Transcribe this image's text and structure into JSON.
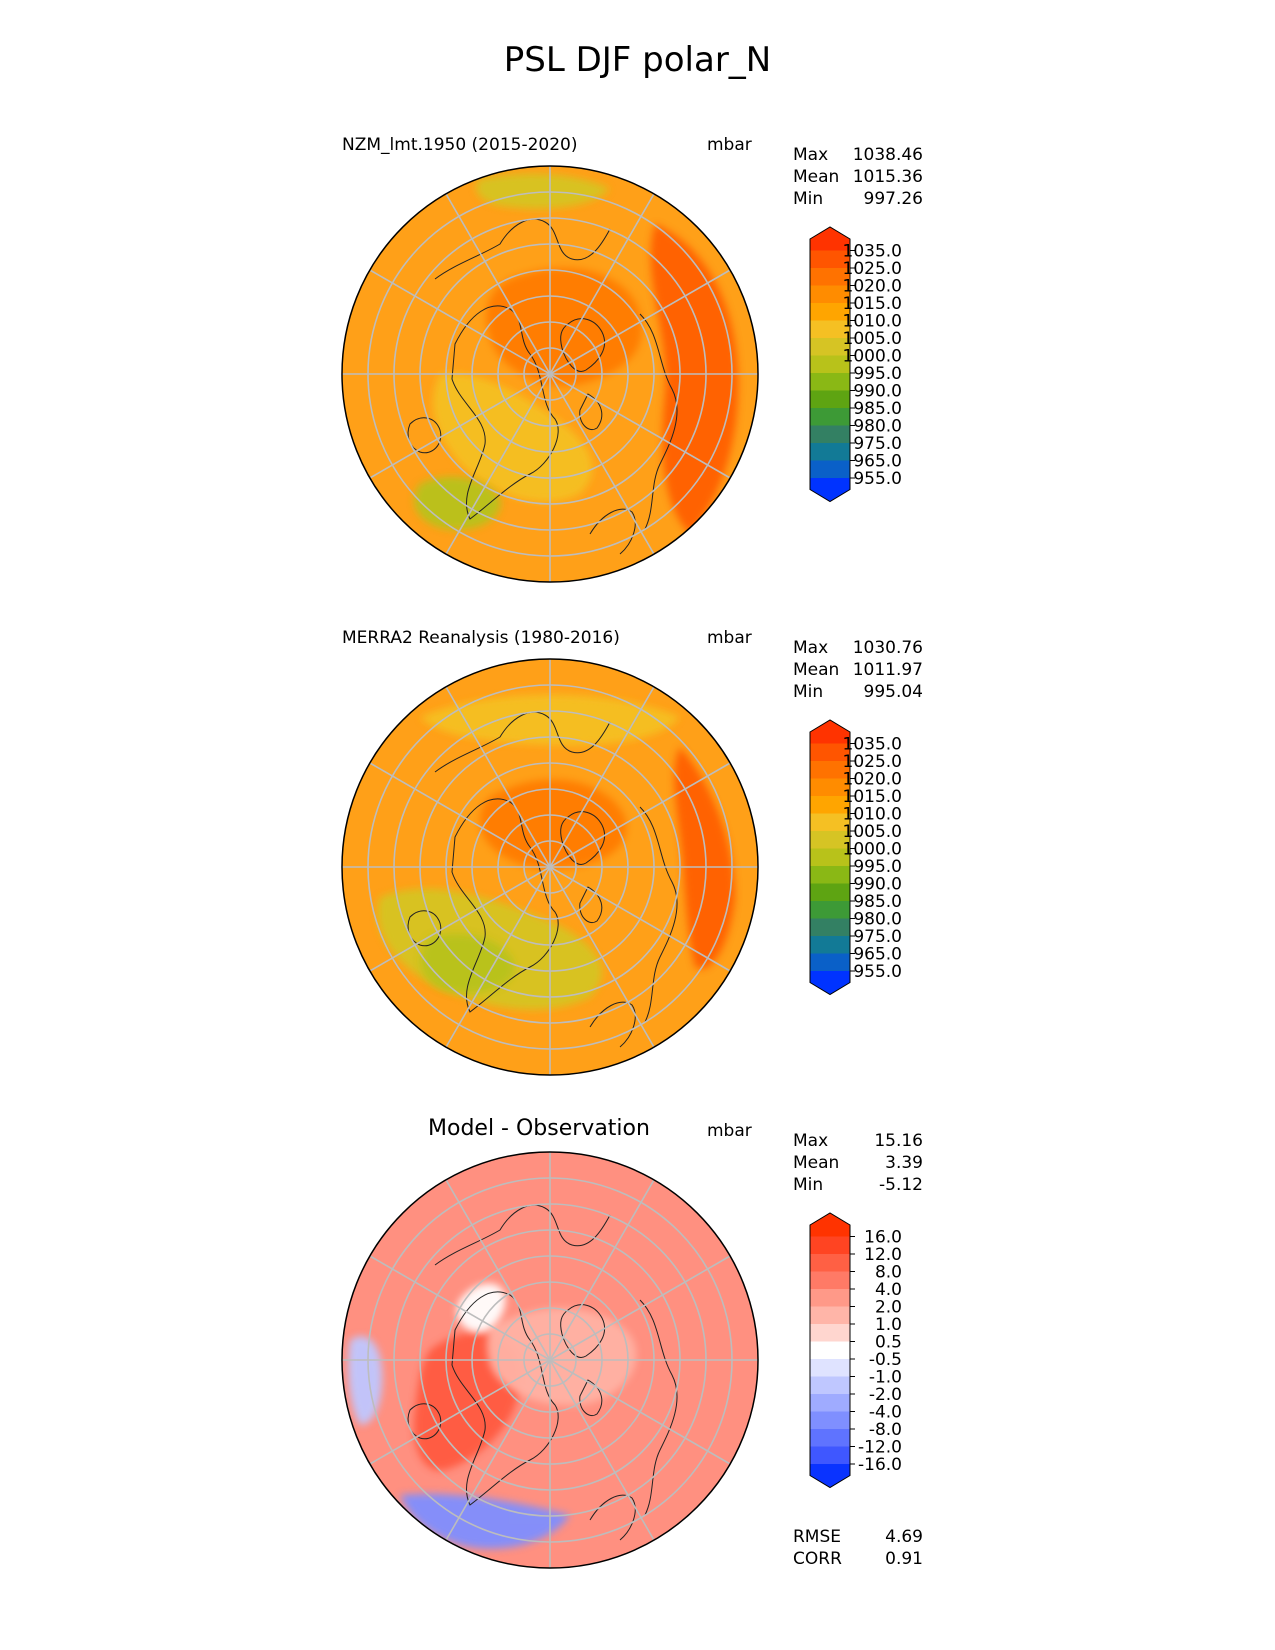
{
  "title": "PSL DJF polar_N",
  "panels": [
    {
      "title": "NZM_lmt.1950 (2015-2020)",
      "units": "mbar",
      "stats": {
        "max_label": "Max",
        "max": "1038.46",
        "mean_label": "Mean",
        "mean": "1015.36",
        "min_label": "Min",
        "min": "997.26"
      },
      "colorbar": {
        "levels": [
          "1035.0",
          "1025.0",
          "1020.0",
          "1015.0",
          "1010.0",
          "1005.0",
          "1000.0",
          "995.0",
          "990.0",
          "985.0",
          "980.0",
          "975.0",
          "965.0",
          "955.0"
        ],
        "colors": [
          "#ff3300",
          "#ff5500",
          "#ff7200",
          "#ff8c00",
          "#ffa500",
          "#f5c023",
          "#d6c424",
          "#b8c21a",
          "#8ab815",
          "#5ea412",
          "#3d9a36",
          "#338063",
          "#127a96",
          "#0a60c8",
          "#0033ff"
        ]
      },
      "map_field": {
        "base_color": "#ffa018",
        "blobs": [
          {
            "color": "#ff7b00",
            "level": 1020.0
          },
          {
            "color": "#ff5e00",
            "level": 1025.0
          },
          {
            "color": "#f5c023",
            "level": 1010.0
          },
          {
            "color": "#b8c21a",
            "level": 1000.0
          },
          {
            "color": "#d6c424",
            "level": 1005.0
          }
        ]
      }
    },
    {
      "title": "MERRA2 Reanalysis (1980-2016)",
      "units": "mbar",
      "stats": {
        "max_label": "Max",
        "max": "1030.76",
        "mean_label": "Mean",
        "mean": "1011.97",
        "min_label": "Min",
        "min": "995.04"
      },
      "colorbar": {
        "levels": [
          "1035.0",
          "1025.0",
          "1020.0",
          "1015.0",
          "1010.0",
          "1005.0",
          "1000.0",
          "995.0",
          "990.0",
          "985.0",
          "980.0",
          "975.0",
          "965.0",
          "955.0"
        ],
        "colors": [
          "#ff3300",
          "#ff5500",
          "#ff7200",
          "#ff8c00",
          "#ffa500",
          "#f5c023",
          "#d6c424",
          "#b8c21a",
          "#8ab815",
          "#5ea412",
          "#3d9a36",
          "#338063",
          "#127a96",
          "#0a60c8",
          "#0033ff"
        ]
      },
      "map_field": {
        "base_color": "#ffa018",
        "blobs": [
          {
            "color": "#ff7b00",
            "level": 1020.0
          },
          {
            "color": "#ff5e00",
            "level": 1025.0
          },
          {
            "color": "#d6c424",
            "level": 1005.0
          },
          {
            "color": "#b8c21a",
            "level": 1000.0
          },
          {
            "color": "#f5c023",
            "level": 1010.0
          }
        ]
      }
    },
    {
      "title": "Model - Observation",
      "units": "mbar",
      "stats": {
        "max_label": "Max",
        "max": "15.16",
        "mean_label": "Mean",
        "mean": "3.39",
        "min_label": "Min",
        "min": "-5.12"
      },
      "colorbar": {
        "levels": [
          "16.0",
          "12.0",
          "8.0",
          "4.0",
          "2.0",
          "1.0",
          "0.5",
          "-0.5",
          "-1.0",
          "-2.0",
          "-4.0",
          "-8.0",
          "-12.0",
          "-16.0"
        ],
        "colors": [
          "#ff3300",
          "#ff4422",
          "#ff6044",
          "#ff7a66",
          "#ff9988",
          "#ffb5a8",
          "#ffd6cf",
          "#ffffff",
          "#dfe3ff",
          "#bfc7ff",
          "#9fabff",
          "#7f8fff",
          "#5f73ff",
          "#3f57ff",
          "#0a33ff"
        ]
      },
      "map_field": {
        "base_color": "#ff9080",
        "blobs": [
          {
            "color": "#ff5a40",
            "level": 8.0
          },
          {
            "color": "#ffb2a4",
            "level": 2.0
          },
          {
            "color": "#ffffff",
            "level": 0.0
          },
          {
            "color": "#7f8fff",
            "level": -4.0
          },
          {
            "color": "#bfc7ff",
            "level": -1.0
          }
        ]
      }
    }
  ],
  "metrics": {
    "rmse_label": "RMSE",
    "rmse": "4.69",
    "corr_label": "CORR",
    "corr": "0.91"
  }
}
